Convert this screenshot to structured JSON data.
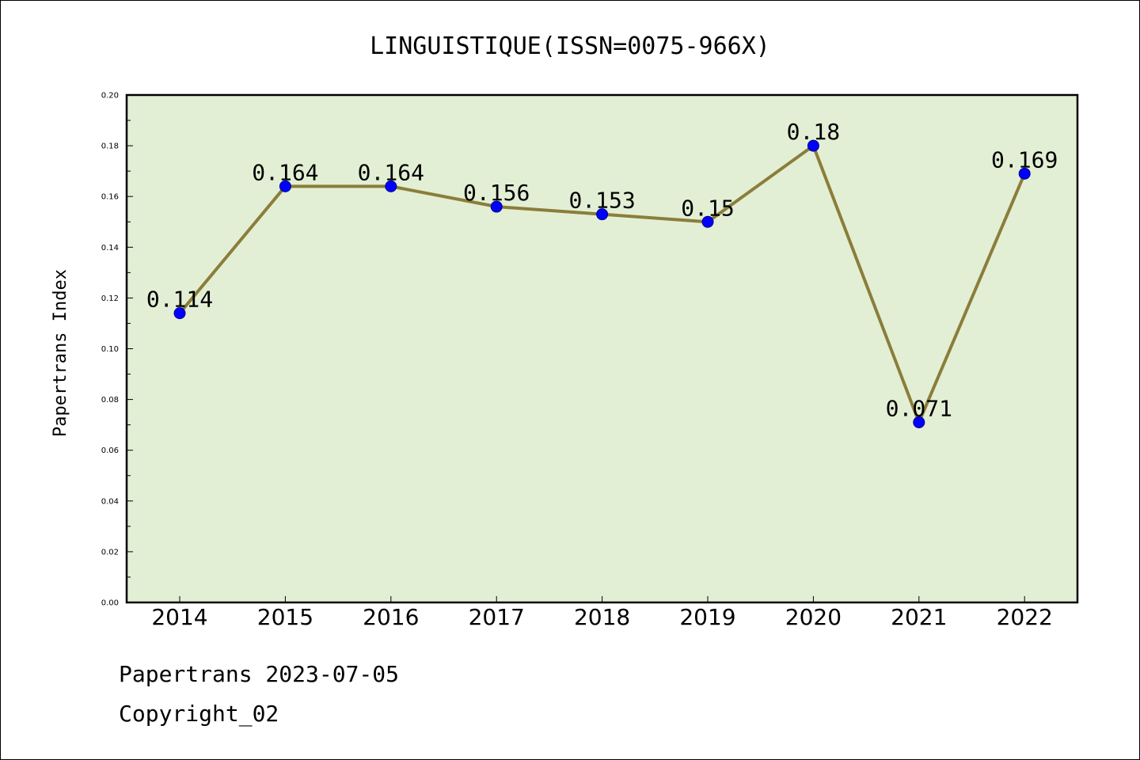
{
  "chart_data": {
    "type": "line",
    "title": "LINGUISTIQUE(ISSN=0075-966X)",
    "xlabel": "",
    "ylabel": "Papertrans Index",
    "categories": [
      "2014",
      "2015",
      "2016",
      "2017",
      "2018",
      "2019",
      "2020",
      "2021",
      "2022"
    ],
    "series": [
      {
        "values": [
          0.114,
          0.164,
          0.164,
          0.156,
          0.153,
          0.15,
          0.18,
          0.071,
          0.169
        ]
      }
    ],
    "data_labels": [
      "0.114",
      "0.164",
      "0.164",
      "0.156",
      "0.153",
      "0.15",
      "0.18",
      "0.071",
      "0.169"
    ],
    "ylim": [
      0,
      0.2
    ],
    "yticks": [
      "0.00",
      "0.02",
      "0.04",
      "0.06",
      "0.08",
      "0.10",
      "0.12",
      "0.14",
      "0.16",
      "0.18",
      "0.20"
    ],
    "grid": false,
    "colors": {
      "plot_background": "#e2efd5",
      "line": "#8b7d3a",
      "marker": "#0000ff"
    }
  },
  "footer": {
    "line1": "Papertrans 2023-07-05",
    "line2": "Copyright_02"
  }
}
